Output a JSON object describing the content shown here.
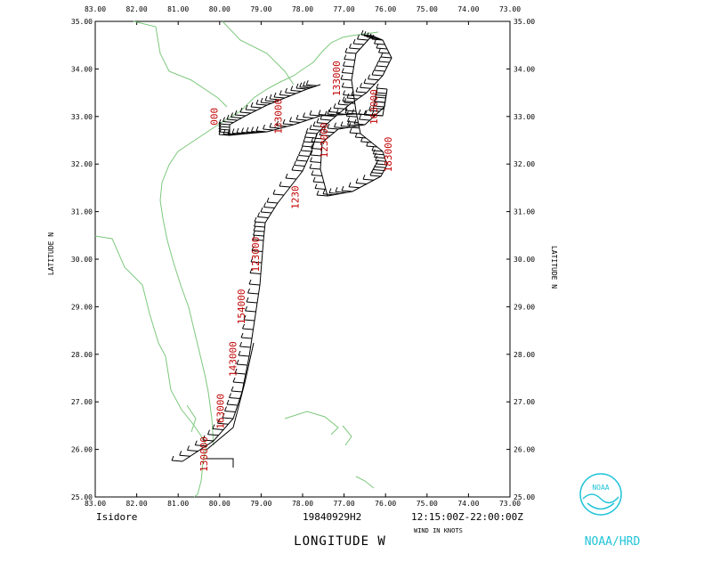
{
  "header_ticks": [
    "83.00",
    "82.00",
    "81.00",
    "80.00",
    "79.00",
    "78.00",
    "77.00",
    "76.00",
    "75.00",
    "74.00",
    "73.00"
  ],
  "lat_ticks": [
    "35.00",
    "34.00",
    "33.00",
    "32.00",
    "31.00",
    "30.00",
    "29.00",
    "28.00",
    "27.00",
    "26.00",
    "25.00"
  ],
  "y_label_left": "LATITUDE N",
  "y_label_right": "LATITUDE N",
  "x_label": "LONGITUDE W",
  "storm_name": "Isidore",
  "flight_id": "19840929H2",
  "time_range": "12:15:00Z-22:00:00Z",
  "wind_units": "WIND IN KNOTS",
  "org_label": "NOAA/HRD",
  "logo_text": "NOAA",
  "colors": {
    "coast": "#7dc87d",
    "annotation": "#c00000",
    "track": "#000000",
    "logo": "#22c4d8"
  },
  "chart_data": {
    "type": "map",
    "map_extent": {
      "lon": [
        -83,
        -73
      ],
      "lat": [
        25,
        35
      ]
    },
    "track_annotations": [
      {
        "text": "000",
        "lon": -80.05,
        "lat": 33.0
      },
      {
        "text": "133000",
        "lon": -78.5,
        "lat": 33.0
      },
      {
        "text": "163000",
        "lon": -76.2,
        "lat": 33.2
      },
      {
        "text": "183000",
        "lon": -75.85,
        "lat": 32.2
      },
      {
        "text": "133000",
        "lon": -77.1,
        "lat": 33.8
      },
      {
        "text": "123000",
        "lon": -77.4,
        "lat": 32.5
      },
      {
        "text": "1230",
        "lon": -78.1,
        "lat": 31.3
      },
      {
        "text": "123000",
        "lon": -79.05,
        "lat": 30.1
      },
      {
        "text": "154000",
        "lon": -79.4,
        "lat": 29.0
      },
      {
        "text": "143000",
        "lon": -79.6,
        "lat": 27.9
      },
      {
        "text": "163000",
        "lon": -79.9,
        "lat": 26.8
      },
      {
        "text": "130000",
        "lon": -80.3,
        "lat": 25.9
      }
    ]
  }
}
